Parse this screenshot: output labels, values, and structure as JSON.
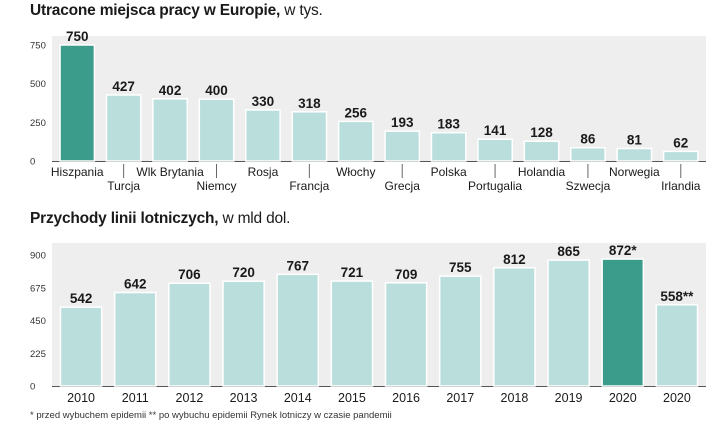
{
  "colors": {
    "bar": "#b9dedb",
    "highlight": "#3b9c8b",
    "band": "#eeeeee",
    "text": "#1a1a1a"
  },
  "chart_data": [
    {
      "type": "bar",
      "title": "Utracone miejsca pracy w Europie,",
      "unit": "w tys.",
      "categories": [
        "Hiszpania",
        "Turcja",
        "Wlk Brytania",
        "Niemcy",
        "Rosja",
        "Francja",
        "Włochy",
        "Grecja",
        "Polska",
        "Portugalia",
        "Holandia",
        "Szwecja",
        "Norwegia",
        "Irlandia"
      ],
      "values": [
        750,
        427,
        402,
        400,
        330,
        318,
        256,
        193,
        183,
        141,
        128,
        86,
        81,
        62
      ],
      "value_labels": [
        "750",
        "427",
        "402",
        "400",
        "330",
        "318",
        "256",
        "193",
        "183",
        "141",
        "128",
        "86",
        "81",
        "62"
      ],
      "highlight_index": [
        0
      ],
      "ylim": [
        0,
        750
      ],
      "yticks": [
        0,
        250,
        500,
        750
      ],
      "ytick_labels": [
        "0",
        "250",
        "500",
        "750"
      ],
      "grid": false,
      "legend": "none"
    },
    {
      "type": "bar",
      "title": "Przychody linii lotniczych,",
      "unit": "w mld dol.",
      "categories": [
        "2010",
        "2011",
        "2012",
        "2013",
        "2014",
        "2015",
        "2016",
        "2017",
        "2018",
        "2019",
        "2020",
        "2020"
      ],
      "values": [
        542,
        642,
        706,
        720,
        767,
        721,
        709,
        755,
        812,
        865,
        872,
        558
      ],
      "value_labels": [
        "542",
        "642",
        "706",
        "720",
        "767",
        "721",
        "709",
        "755",
        "812",
        "865",
        "872*",
        "558**"
      ],
      "highlight_index": [
        10
      ],
      "ylim": [
        0,
        900
      ],
      "yticks": [
        0,
        225,
        450,
        675,
        900
      ],
      "ytick_labels": [
        "0",
        "225",
        "450",
        "675",
        "900"
      ],
      "grid": false,
      "legend": "none"
    }
  ],
  "footnote": "* przed wybuchem epidemii ** po wybuchu epidemii Rynek lotniczy w czasie pandemii"
}
